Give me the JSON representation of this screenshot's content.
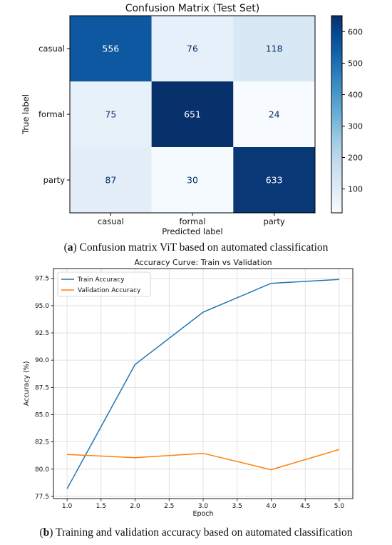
{
  "captions": {
    "a_label": "a",
    "a_text": " Confusion matrix ViT based on automated classification",
    "b_label": "b",
    "b_text": " Training and validation accuracy based on automated classification"
  },
  "chart_data": [
    {
      "type": "heatmap",
      "title": "Confusion Matrix (Test Set)",
      "xlabel": "Predicted label",
      "ylabel": "True label",
      "x_categories": [
        "casual",
        "formal",
        "party"
      ],
      "y_categories": [
        "casual",
        "formal",
        "party"
      ],
      "values": [
        [
          556,
          76,
          118
        ],
        [
          75,
          651,
          24
        ],
        [
          87,
          30,
          633
        ]
      ],
      "colormap": "Blues",
      "vmin": 24,
      "vmax": 651,
      "colorbar_ticks": [
        100,
        200,
        300,
        400,
        500,
        600
      ],
      "colors": {
        "low": "#f7fbff",
        "high": "#08306b"
      }
    },
    {
      "type": "line",
      "title": "Accuracy Curve: Train vs Validation",
      "xlabel": "Epoch",
      "ylabel": "Accuracy (%)",
      "x": [
        1,
        2,
        3,
        4,
        5
      ],
      "series": [
        {
          "name": "Train Accuracy",
          "color": "#1f77b4",
          "values": [
            78.2,
            89.6,
            94.4,
            97.05,
            97.4
          ]
        },
        {
          "name": "Validation Accuracy",
          "color": "#ff7f0e",
          "values": [
            81.35,
            81.05,
            81.45,
            79.95,
            81.8
          ]
        }
      ],
      "xlim": [
        0.8,
        5.2
      ],
      "ylim": [
        77.3,
        98.4
      ],
      "xticks": [
        "1.0",
        "1.5",
        "2.0",
        "2.5",
        "3.0",
        "3.5",
        "4.0",
        "4.5",
        "5.0"
      ],
      "yticks": [
        "77.5",
        "80.0",
        "82.5",
        "85.0",
        "87.5",
        "90.0",
        "92.5",
        "95.0",
        "97.5"
      ],
      "grid": true,
      "legend_position": "top-left"
    }
  ]
}
